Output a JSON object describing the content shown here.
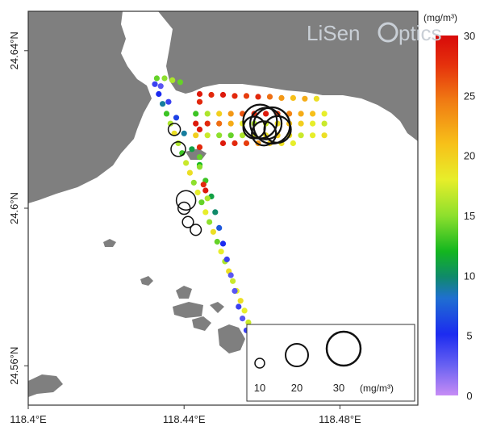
{
  "map": {
    "x_axis": {
      "ticks": [
        {
          "value": 118.4,
          "label": "118.4°E"
        },
        {
          "value": 118.44,
          "label": "118.44°E"
        },
        {
          "value": 118.48,
          "label": "118.48°E"
        }
      ],
      "range": [
        118.4,
        118.5
      ]
    },
    "y_axis": {
      "ticks": [
        {
          "value": 24.64,
          "label": "24.64°N"
        },
        {
          "value": 24.6,
          "label": "24.6°N"
        },
        {
          "value": 24.56,
          "label": "24.56°N"
        }
      ],
      "range": [
        24.55,
        24.65
      ]
    },
    "colors": {
      "land": "#7f7f7f",
      "water": "#ffffff",
      "frame": "#333333"
    }
  },
  "colorbar": {
    "unit": "(mg/m³)",
    "ticks": [
      "0",
      "5",
      "10",
      "15",
      "20",
      "25",
      "30"
    ],
    "range": [
      0,
      30
    ]
  },
  "size_legend": {
    "entries": [
      {
        "value": 10,
        "label": "10"
      },
      {
        "value": 20,
        "label": "20"
      },
      {
        "value": 30,
        "label": "30"
      }
    ],
    "unit": "(mg/m³)"
  },
  "logo": {
    "text_a": "LiSen",
    "text_b": "ptics"
  },
  "chart_data": {
    "type": "scatter",
    "series": [
      {
        "points": [
          {
            "lon": 118.4325,
            "lat": 24.6315,
            "value": 4
          },
          {
            "lon": 118.4335,
            "lat": 24.629,
            "value": 5
          },
          {
            "lon": 118.4345,
            "lat": 24.6265,
            "value": 9
          },
          {
            "lon": 118.4355,
            "lat": 24.624,
            "value": 13
          },
          {
            "lon": 118.4365,
            "lat": 24.6215,
            "value": 16
          },
          {
            "lon": 118.4375,
            "lat": 24.619,
            "value": 19
          },
          {
            "lon": 118.4385,
            "lat": 24.6165,
            "value": 16
          },
          {
            "lon": 118.4395,
            "lat": 24.614,
            "value": 13
          },
          {
            "lon": 118.4405,
            "lat": 24.6115,
            "value": 17
          },
          {
            "lon": 118.4415,
            "lat": 24.609,
            "value": 19
          },
          {
            "lon": 118.4425,
            "lat": 24.6065,
            "value": 15
          },
          {
            "lon": 118.4435,
            "lat": 24.604,
            "value": 18
          },
          {
            "lon": 118.4445,
            "lat": 24.6015,
            "value": 14
          },
          {
            "lon": 118.4455,
            "lat": 24.599,
            "value": 18
          },
          {
            "lon": 118.4465,
            "lat": 24.5965,
            "value": 15
          },
          {
            "lon": 118.4475,
            "lat": 24.594,
            "value": 19
          },
          {
            "lon": 118.4485,
            "lat": 24.5915,
            "value": 14
          },
          {
            "lon": 118.4495,
            "lat": 24.589,
            "value": 18
          },
          {
            "lon": 118.4505,
            "lat": 24.5865,
            "value": 16
          },
          {
            "lon": 118.4515,
            "lat": 24.584,
            "value": 19
          },
          {
            "lon": 118.4525,
            "lat": 24.5815,
            "value": 17
          },
          {
            "lon": 118.4535,
            "lat": 24.579,
            "value": 18
          },
          {
            "lon": 118.4545,
            "lat": 24.5765,
            "value": 19
          },
          {
            "lon": 118.4555,
            "lat": 24.574,
            "value": 18
          },
          {
            "lon": 118.4565,
            "lat": 24.571,
            "value": 17
          },
          {
            "lon": 118.457,
            "lat": 24.569,
            "value": 18
          },
          {
            "lon": 118.434,
            "lat": 24.631,
            "value": 3
          },
          {
            "lon": 118.436,
            "lat": 24.627,
            "value": 4
          },
          {
            "lon": 118.438,
            "lat": 24.623,
            "value": 6
          },
          {
            "lon": 118.44,
            "lat": 24.619,
            "value": 9
          },
          {
            "lon": 118.442,
            "lat": 24.615,
            "value": 11
          },
          {
            "lon": 118.444,
            "lat": 24.611,
            "value": 12
          },
          {
            "lon": 118.4455,
            "lat": 24.607,
            "value": 13
          },
          {
            "lon": 118.447,
            "lat": 24.603,
            "value": 11
          },
          {
            "lon": 118.448,
            "lat": 24.599,
            "value": 10
          },
          {
            "lon": 118.449,
            "lat": 24.595,
            "value": 7
          },
          {
            "lon": 118.45,
            "lat": 24.591,
            "value": 5
          },
          {
            "lon": 118.451,
            "lat": 24.587,
            "value": 4
          },
          {
            "lon": 118.452,
            "lat": 24.583,
            "value": 3
          },
          {
            "lon": 118.453,
            "lat": 24.579,
            "value": 3
          },
          {
            "lon": 118.454,
            "lat": 24.575,
            "value": 4
          },
          {
            "lon": 118.455,
            "lat": 24.572,
            "value": 3
          },
          {
            "lon": 118.456,
            "lat": 24.569,
            "value": 4
          },
          {
            "lon": 118.433,
            "lat": 24.633,
            "value": 14
          },
          {
            "lon": 118.435,
            "lat": 24.633,
            "value": 15
          },
          {
            "lon": 118.437,
            "lat": 24.6325,
            "value": 16
          },
          {
            "lon": 118.439,
            "lat": 24.632,
            "value": 14
          },
          {
            "lon": 118.444,
            "lat": 24.629,
            "value": 29
          },
          {
            "lon": 118.447,
            "lat": 24.6288,
            "value": 28
          },
          {
            "lon": 118.45,
            "lat": 24.6288,
            "value": 29
          },
          {
            "lon": 118.453,
            "lat": 24.6285,
            "value": 28
          },
          {
            "lon": 118.456,
            "lat": 24.6285,
            "value": 27
          },
          {
            "lon": 118.459,
            "lat": 24.6283,
            "value": 28
          },
          {
            "lon": 118.462,
            "lat": 24.6283,
            "value": 25
          },
          {
            "lon": 118.465,
            "lat": 24.628,
            "value": 23
          },
          {
            "lon": 118.468,
            "lat": 24.628,
            "value": 21
          },
          {
            "lon": 118.471,
            "lat": 24.6278,
            "value": 22
          },
          {
            "lon": 118.474,
            "lat": 24.6278,
            "value": 19
          },
          {
            "lon": 118.443,
            "lat": 24.624,
            "value": 13
          },
          {
            "lon": 118.446,
            "lat": 24.624,
            "value": 16
          },
          {
            "lon": 118.449,
            "lat": 24.624,
            "value": 20
          },
          {
            "lon": 118.452,
            "lat": 24.624,
            "value": 23
          },
          {
            "lon": 118.455,
            "lat": 24.624,
            "value": 26
          },
          {
            "lon": 118.458,
            "lat": 24.624,
            "value": 28
          },
          {
            "lon": 118.461,
            "lat": 24.624,
            "value": 29
          },
          {
            "lon": 118.464,
            "lat": 24.624,
            "value": 27
          },
          {
            "lon": 118.467,
            "lat": 24.624,
            "value": 24
          },
          {
            "lon": 118.47,
            "lat": 24.624,
            "value": 22
          },
          {
            "lon": 118.473,
            "lat": 24.624,
            "value": 21
          },
          {
            "lon": 118.476,
            "lat": 24.624,
            "value": 18
          },
          {
            "lon": 118.443,
            "lat": 24.6215,
            "value": 29
          },
          {
            "lon": 118.446,
            "lat": 24.6215,
            "value": 28
          },
          {
            "lon": 118.449,
            "lat": 24.6215,
            "value": 25
          },
          {
            "lon": 118.452,
            "lat": 24.6215,
            "value": 22
          },
          {
            "lon": 118.455,
            "lat": 24.6215,
            "value": 18
          },
          {
            "lon": 118.458,
            "lat": 24.6215,
            "value": 16
          },
          {
            "lon": 118.461,
            "lat": 24.6215,
            "value": 17
          },
          {
            "lon": 118.464,
            "lat": 24.6215,
            "value": 19
          },
          {
            "lon": 118.467,
            "lat": 24.6215,
            "value": 21
          },
          {
            "lon": 118.47,
            "lat": 24.6215,
            "value": 20
          },
          {
            "lon": 118.473,
            "lat": 24.6215,
            "value": 18
          },
          {
            "lon": 118.476,
            "lat": 24.6215,
            "value": 17
          },
          {
            "lon": 118.443,
            "lat": 24.6185,
            "value": 20
          },
          {
            "lon": 118.446,
            "lat": 24.6185,
            "value": 17
          },
          {
            "lon": 118.449,
            "lat": 24.6185,
            "value": 15
          },
          {
            "lon": 118.452,
            "lat": 24.6185,
            "value": 14
          },
          {
            "lon": 118.455,
            "lat": 24.6185,
            "value": 16
          },
          {
            "lon": 118.458,
            "lat": 24.6185,
            "value": 18
          },
          {
            "lon": 118.461,
            "lat": 24.6185,
            "value": 19
          },
          {
            "lon": 118.464,
            "lat": 24.6185,
            "value": 20
          },
          {
            "lon": 118.467,
            "lat": 24.6185,
            "value": 19
          },
          {
            "lon": 118.47,
            "lat": 24.6185,
            "value": 17
          },
          {
            "lon": 118.473,
            "lat": 24.6185,
            "value": 18
          },
          {
            "lon": 118.476,
            "lat": 24.6185,
            "value": 19
          },
          {
            "lon": 118.45,
            "lat": 24.6165,
            "value": 29
          },
          {
            "lon": 118.453,
            "lat": 24.6165,
            "value": 28
          },
          {
            "lon": 118.456,
            "lat": 24.6165,
            "value": 27
          },
          {
            "lon": 118.459,
            "lat": 24.6165,
            "value": 23
          },
          {
            "lon": 118.462,
            "lat": 24.6165,
            "value": 20
          },
          {
            "lon": 118.465,
            "lat": 24.6165,
            "value": 19
          },
          {
            "lon": 118.468,
            "lat": 24.6165,
            "value": 18
          },
          {
            "lon": 118.444,
            "lat": 24.627,
            "value": 28
          },
          {
            "lon": 118.444,
            "lat": 24.62,
            "value": 29
          },
          {
            "lon": 118.444,
            "lat": 24.6155,
            "value": 28
          },
          {
            "lon": 118.444,
            "lat": 24.613,
            "value": 14
          },
          {
            "lon": 118.444,
            "lat": 24.6105,
            "value": 15
          },
          {
            "lon": 118.445,
            "lat": 24.606,
            "value": 28
          },
          {
            "lon": 118.4455,
            "lat": 24.6045,
            "value": 29
          },
          {
            "lon": 118.446,
            "lat": 24.6025,
            "value": 16
          }
        ]
      }
    ],
    "circles": [
      {
        "lon": 118.4375,
        "lat": 24.62,
        "value": 12
      },
      {
        "lon": 118.4385,
        "lat": 24.615,
        "value": 14
      },
      {
        "lon": 118.4405,
        "lat": 24.602,
        "value": 18
      },
      {
        "lon": 118.44,
        "lat": 24.6,
        "value": 12
      },
      {
        "lon": 118.441,
        "lat": 24.5965,
        "value": 11
      },
      {
        "lon": 118.443,
        "lat": 24.5945,
        "value": 11
      },
      {
        "lon": 118.4595,
        "lat": 24.622,
        "value": 30
      },
      {
        "lon": 118.461,
        "lat": 24.6215,
        "value": 28
      },
      {
        "lon": 118.4625,
        "lat": 24.621,
        "value": 32
      },
      {
        "lon": 118.4605,
        "lat": 24.619,
        "value": 22
      },
      {
        "lon": 118.458,
        "lat": 24.6205,
        "value": 20
      },
      {
        "lon": 118.464,
        "lat": 24.62,
        "value": 24
      }
    ],
    "xlim": [
      118.4,
      118.5
    ],
    "ylim": [
      24.55,
      24.65
    ]
  }
}
